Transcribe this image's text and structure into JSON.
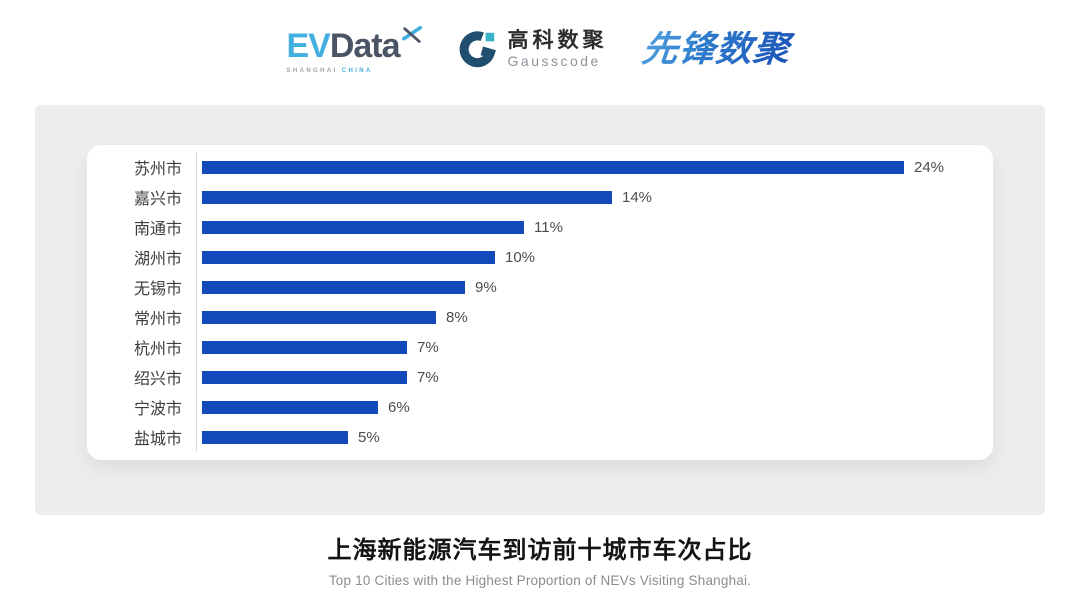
{
  "header": {
    "logos": {
      "evdata": {
        "ev": "EV",
        "data": "Data",
        "sub_left": "SHANGHAI",
        "sub_right": "CHINA",
        "ev_color": "#41afe0",
        "data_color": "#4a5464"
      },
      "gausscode": {
        "cn": "高科数聚",
        "en": "Gausscode",
        "mark_color": "#1f4e6e",
        "accent_color": "#35b4c7"
      },
      "xianfeng": {
        "text": "先锋数聚",
        "color": "#2f7ccc"
      }
    }
  },
  "chart_data": {
    "type": "bar",
    "orientation": "horizontal",
    "categories": [
      "苏州市",
      "嘉兴市",
      "南通市",
      "湖州市",
      "无锡市",
      "常州市",
      "杭州市",
      "绍兴市",
      "宁波市",
      "盐城市"
    ],
    "values": [
      24,
      14,
      11,
      10,
      9,
      8,
      7,
      7,
      6,
      5
    ],
    "value_labels": [
      "24%",
      "14%",
      "11%",
      "10%",
      "9%",
      "8%",
      "7%",
      "7%",
      "6%",
      "5%"
    ],
    "xlim": [
      0,
      24
    ],
    "unit": "%",
    "bar_color": "#1249bb",
    "grid": false,
    "legend": "none",
    "title": "上海新能源汽车到访前十城市车次占比",
    "subtitle": "Top 10 Cities with the Highest Proportion of  NEVs Visiting Shanghai."
  },
  "footer": {
    "title": "上海新能源汽车到访前十城市车次占比",
    "subtitle": "Top 10 Cities with the Highest Proportion of  NEVs Visiting Shanghai."
  }
}
